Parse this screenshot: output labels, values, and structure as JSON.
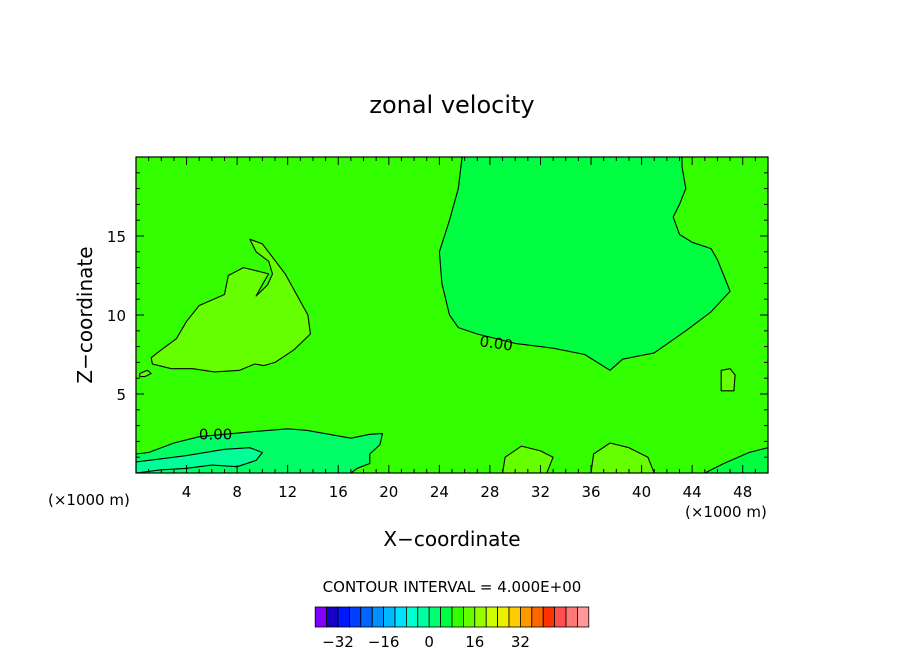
{
  "chart_data": {
    "type": "contour",
    "title": "zonal velocity",
    "xlabel": "X−coordinate",
    "ylabel": "Z−coordinate",
    "x_unit_left": "(×1000 m)",
    "x_unit_right": "(×1000 m)",
    "xlim": [
      0,
      50
    ],
    "ylim": [
      0,
      20
    ],
    "xticks": [
      4,
      8,
      12,
      16,
      20,
      24,
      28,
      32,
      36,
      40,
      44,
      48
    ],
    "yticks": [
      5,
      10,
      15
    ],
    "contour_interval_text": "CONTOUR INTERVAL = 4.000E+00",
    "contour_labels": [
      "0.00",
      "0.00"
    ],
    "background_color": "#33ff00",
    "regions": [
      {
        "name": "negative-region-top",
        "color": "#00ff40",
        "level": "< 0",
        "points": [
          [
            25.8,
            20
          ],
          [
            25.5,
            18
          ],
          [
            24.8,
            16
          ],
          [
            24,
            14
          ],
          [
            24.2,
            12
          ],
          [
            24.8,
            10
          ],
          [
            25.5,
            9.2
          ],
          [
            27,
            8.8
          ],
          [
            30,
            8.2
          ],
          [
            33,
            7.9
          ],
          [
            35.5,
            7.5
          ],
          [
            37.5,
            6.5
          ],
          [
            38.5,
            7.2
          ],
          [
            41,
            7.6
          ],
          [
            43.5,
            9
          ],
          [
            45.5,
            10.2
          ],
          [
            47,
            11.5
          ],
          [
            46.5,
            12.5
          ],
          [
            46,
            13.5
          ],
          [
            45.5,
            14.2
          ],
          [
            44,
            14.6
          ],
          [
            43,
            15.1
          ],
          [
            42.5,
            16.2
          ],
          [
            43,
            17
          ],
          [
            43.5,
            18
          ],
          [
            43.2,
            19.4
          ],
          [
            43.2,
            20
          ]
        ]
      },
      {
        "name": "positive-region-left",
        "color": "#66ff00",
        "level": "> 0",
        "points": [
          [
            1.2,
            7.3
          ],
          [
            2,
            7.8
          ],
          [
            3.2,
            8.5
          ],
          [
            4,
            9.6
          ],
          [
            5,
            10.6
          ],
          [
            7,
            11.3
          ],
          [
            7.3,
            12.5
          ],
          [
            8.5,
            13
          ],
          [
            10.5,
            12.6
          ],
          [
            10.2,
            12.2
          ],
          [
            9.5,
            11.2
          ],
          [
            10.4,
            11.9
          ],
          [
            10.8,
            12.6
          ],
          [
            10.5,
            13.4
          ],
          [
            9.5,
            14
          ],
          [
            9,
            14.8
          ],
          [
            10,
            14.5
          ],
          [
            11.8,
            12.6
          ],
          [
            13.6,
            10
          ],
          [
            13.8,
            8.8
          ],
          [
            12.5,
            7.8
          ],
          [
            11,
            7
          ],
          [
            10.1,
            6.8
          ],
          [
            9.4,
            6.9
          ],
          [
            8.2,
            6.5
          ],
          [
            6.2,
            6.4
          ],
          [
            4.5,
            6.6
          ],
          [
            2.8,
            6.6
          ],
          [
            1.3,
            6.9
          ]
        ]
      },
      {
        "name": "positive-blob-right",
        "color": "#66ff00",
        "level": "> 0",
        "points": [
          [
            46.3,
            5.2
          ],
          [
            46.3,
            6.5
          ],
          [
            47,
            6.6
          ],
          [
            47.4,
            6.2
          ],
          [
            47.3,
            5.2
          ]
        ]
      },
      {
        "name": "positive-blob-left-edge",
        "color": "#66ff00",
        "level": "> 0",
        "points": [
          [
            0.3,
            6.3
          ],
          [
            0.9,
            6.5
          ],
          [
            1.2,
            6.3
          ],
          [
            0.7,
            6.1
          ],
          [
            0.3,
            6.1
          ]
        ]
      },
      {
        "name": "negative-region-bottom",
        "color": "#00ff66",
        "level": "< 0",
        "points": [
          [
            0,
            0
          ],
          [
            0,
            1.2
          ],
          [
            1,
            1.3
          ],
          [
            3,
            1.9
          ],
          [
            5,
            2.3
          ],
          [
            9,
            2.6
          ],
          [
            12,
            2.8
          ],
          [
            13.5,
            2.7
          ],
          [
            17,
            2.2
          ],
          [
            18.5,
            2.45
          ],
          [
            19.5,
            2.5
          ],
          [
            19.3,
            1.8
          ],
          [
            18.5,
            1.2
          ],
          [
            18.5,
            0.6
          ],
          [
            17.5,
            0.3
          ],
          [
            17,
            0
          ]
        ]
      },
      {
        "name": "negative-pocket-bottom",
        "color": "#00ff99",
        "level": "< -4",
        "points": [
          [
            0,
            0
          ],
          [
            0,
            0.7
          ],
          [
            2,
            0.9
          ],
          [
            4,
            1.1
          ],
          [
            7,
            1.5
          ],
          [
            9,
            1.6
          ],
          [
            10,
            1.3
          ],
          [
            9.5,
            0.8
          ],
          [
            8,
            0.4
          ],
          [
            6,
            0.5
          ],
          [
            4,
            0.3
          ],
          [
            2,
            0.2
          ]
        ]
      },
      {
        "name": "positive-bottom-1",
        "color": "#66ff00",
        "level": "> 0",
        "points": [
          [
            29,
            0
          ],
          [
            29.2,
            1
          ],
          [
            30.5,
            1.7
          ],
          [
            32,
            1.4
          ],
          [
            33,
            1
          ],
          [
            32.5,
            0
          ]
        ]
      },
      {
        "name": "positive-bottom-2",
        "color": "#66ff00",
        "level": "> 0",
        "points": [
          [
            36,
            0
          ],
          [
            36.2,
            1.2
          ],
          [
            37.5,
            1.9
          ],
          [
            39,
            1.6
          ],
          [
            40.5,
            1
          ],
          [
            41,
            0
          ]
        ]
      },
      {
        "name": "negative-bottom-right",
        "color": "#00ff40",
        "level": "< 0",
        "points": [
          [
            45,
            0
          ],
          [
            46.5,
            0.6
          ],
          [
            48.5,
            1.3
          ],
          [
            50,
            1.6
          ],
          [
            50,
            0
          ]
        ]
      }
    ],
    "colorbar": {
      "ticks": [
        "−32",
        "−16",
        "0",
        "16",
        "32"
      ],
      "levels_min": -40,
      "levels_step": 4,
      "colors": [
        "#7f00ff",
        "#1500c8",
        "#0018ff",
        "#0040ff",
        "#0066ff",
        "#0090ff",
        "#00b8ff",
        "#00e0ff",
        "#00ffd0",
        "#00ffa0",
        "#00ff70",
        "#00ff40",
        "#33ff00",
        "#66ff00",
        "#99ff00",
        "#ccff00",
        "#eeee00",
        "#ffcc00",
        "#ff9900",
        "#ff6600",
        "#ff3300",
        "#ff5050",
        "#ff7777",
        "#ff9999"
      ]
    }
  }
}
